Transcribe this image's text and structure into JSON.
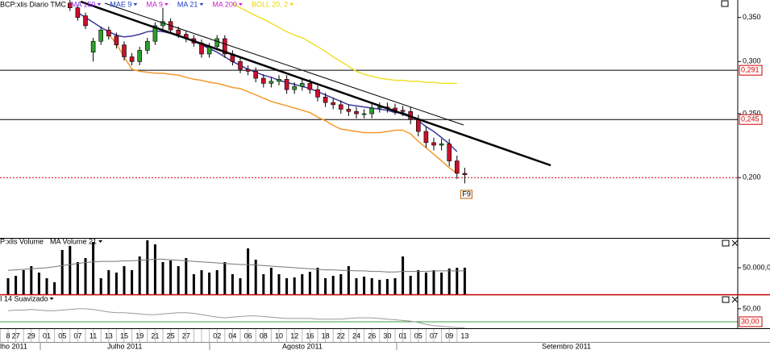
{
  "chart_data": [
    {
      "type": "candlestick",
      "title": "BCP:xlis Diario TMC",
      "legend": [
        {
          "name": "MA 150",
          "color": "#8a2be2"
        },
        {
          "name": "MAE 9",
          "color": "#2040c0"
        },
        {
          "name": "MA 9",
          "color": "#d020d0"
        },
        {
          "name": "MA 21",
          "color": "#2040c0"
        },
        {
          "name": "MA 200",
          "color": "#d020d0"
        },
        {
          "name": "BOLL 20, 2",
          "color": "#e8d800"
        }
      ],
      "open": [
        null,
        null,
        null,
        null,
        null,
        null,
        null,
        null,
        0.368,
        0.362,
        0.352,
        0.31,
        0.322,
        0.335,
        0.328,
        0.318,
        0.305,
        0.3,
        0.312,
        0.322,
        0.34,
        0.345,
        0.335,
        0.33,
        0.325,
        0.32,
        0.308,
        0.316,
        0.325,
        0.308,
        0.3,
        0.292,
        0.29,
        0.283,
        0.278,
        0.28,
        0.282,
        0.272,
        0.275,
        0.278,
        0.272,
        0.265,
        0.26,
        0.258,
        0.254,
        0.252,
        0.25,
        0.25,
        0.255,
        0.256,
        0.255,
        0.253,
        0.252,
        0.245,
        0.235,
        0.226,
        0.224,
        0.225,
        0.212,
        0.203
      ],
      "high": [
        null,
        null,
        null,
        null,
        null,
        null,
        null,
        null,
        0.372,
        0.366,
        0.356,
        0.326,
        0.339,
        0.339,
        0.332,
        0.322,
        0.309,
        0.316,
        0.326,
        0.344,
        0.362,
        0.349,
        0.339,
        0.334,
        0.329,
        0.324,
        0.32,
        0.329,
        0.329,
        0.312,
        0.304,
        0.296,
        0.294,
        0.287,
        0.284,
        0.286,
        0.286,
        0.279,
        0.282,
        0.282,
        0.276,
        0.269,
        0.264,
        0.262,
        0.258,
        0.256,
        0.254,
        0.259,
        0.26,
        0.26,
        0.259,
        0.257,
        0.256,
        0.249,
        0.239,
        0.23,
        0.229,
        0.229,
        0.216,
        0.207
      ],
      "low": [
        null,
        null,
        null,
        null,
        null,
        null,
        null,
        null,
        0.358,
        0.346,
        0.336,
        0.3,
        0.318,
        0.324,
        0.314,
        0.301,
        0.296,
        0.296,
        0.308,
        0.318,
        0.336,
        0.331,
        0.326,
        0.321,
        0.316,
        0.304,
        0.304,
        0.312,
        0.304,
        0.296,
        0.288,
        0.286,
        0.279,
        0.274,
        0.274,
        0.276,
        0.268,
        0.268,
        0.271,
        0.268,
        0.261,
        0.256,
        0.254,
        0.25,
        0.248,
        0.246,
        0.246,
        0.246,
        0.251,
        0.251,
        0.249,
        0.248,
        0.241,
        0.231,
        0.222,
        0.22,
        0.22,
        0.208,
        0.199,
        0.196
      ],
      "close": [
        null,
        null,
        null,
        null,
        null,
        null,
        null,
        null,
        0.362,
        0.35,
        0.34,
        0.322,
        0.335,
        0.328,
        0.318,
        0.305,
        0.3,
        0.312,
        0.322,
        0.34,
        0.345,
        0.335,
        0.33,
        0.325,
        0.32,
        0.308,
        0.316,
        0.325,
        0.308,
        0.3,
        0.292,
        0.29,
        0.283,
        0.278,
        0.28,
        0.282,
        0.272,
        0.275,
        0.278,
        0.272,
        0.265,
        0.26,
        0.258,
        0.254,
        0.252,
        0.25,
        0.25,
        0.255,
        0.256,
        0.255,
        0.253,
        0.252,
        0.245,
        0.235,
        0.226,
        0.224,
        0.225,
        0.212,
        0.203,
        0.202
      ],
      "up_color": "#2e9e2e",
      "down_color": "#c8102e",
      "overlays": [
        {
          "color": "#f0e030",
          "values": [
            null,
            null,
            null,
            null,
            null,
            null,
            null,
            null,
            null,
            null,
            null,
            null,
            null,
            null,
            null,
            null,
            null,
            null,
            null,
            null,
            null,
            null,
            null,
            null,
            null,
            null,
            null,
            null,
            null,
            0.368,
            0.362,
            0.357,
            0.352,
            0.348,
            0.343,
            0.338,
            0.333,
            0.329,
            0.326,
            0.321,
            0.316,
            0.311,
            0.305,
            0.3,
            0.295,
            0.29,
            0.287,
            0.285,
            0.283,
            0.282,
            0.281,
            0.281,
            0.28,
            0.28,
            0.279,
            0.279,
            0.278,
            0.278,
            0.278,
            null
          ]
        },
        {
          "color": "#f39a2c",
          "values": [
            null,
            null,
            null,
            null,
            null,
            null,
            null,
            null,
            null,
            null,
            null,
            null,
            null,
            0.33,
            0.319,
            0.305,
            0.292,
            0.29,
            0.289,
            0.288,
            0.288,
            0.287,
            0.286,
            0.284,
            0.282,
            0.281,
            0.279,
            0.278,
            0.276,
            0.274,
            0.273,
            0.27,
            0.267,
            0.264,
            0.261,
            0.259,
            0.257,
            0.255,
            0.253,
            0.251,
            0.247,
            0.244,
            0.24,
            0.237,
            0.236,
            0.235,
            0.234,
            0.234,
            0.234,
            0.235,
            0.236,
            0.236,
            0.233,
            0.227,
            0.222,
            0.217,
            0.212,
            0.207,
            0.203,
            null
          ]
        },
        {
          "color": "#3a3a9a",
          "values": [
            null,
            null,
            null,
            null,
            null,
            null,
            null,
            null,
            null,
            0.356,
            0.35,
            0.344,
            0.338,
            0.333,
            0.329,
            0.327,
            0.328,
            0.33,
            0.333,
            0.334,
            0.333,
            0.331,
            0.328,
            0.325,
            0.322,
            0.318,
            0.314,
            0.31,
            0.305,
            0.3,
            0.296,
            0.292,
            0.289,
            0.286,
            0.284,
            0.281,
            0.279,
            0.277,
            0.275,
            0.273,
            0.27,
            0.267,
            0.264,
            0.261,
            0.258,
            0.257,
            0.256,
            0.255,
            0.254,
            0.253,
            0.251,
            0.251,
            0.248,
            0.244,
            0.239,
            0.235,
            0.23,
            0.225,
            0.219,
            null
          ]
        }
      ],
      "ylim": [
        0.162,
        0.372
      ],
      "log_scale": true,
      "yticks": [
        {
          "value": 0.2,
          "label": "0,200"
        },
        {
          "value": 0.25,
          "label": "0,250"
        },
        {
          "value": 0.3,
          "label": "0,300"
        },
        {
          "value": 0.35,
          "label": "0,350"
        }
      ],
      "levels": [
        {
          "value": 0.291,
          "label": "0,291"
        },
        {
          "value": 0.245,
          "label": "0,245"
        }
      ],
      "last_price": 0.2,
      "annotation": "F9"
    },
    {
      "type": "bar",
      "title": "P:xlis Volume",
      "color": "#000000",
      "values": [
        30300,
        34800,
        45500,
        53000,
        40900,
        30300,
        22700,
        83300,
        90900,
        60600,
        68200,
        98500,
        30300,
        45500,
        40900,
        53000,
        45500,
        71200,
        101500,
        93900,
        60600,
        63600,
        53000,
        68200,
        37900,
        45500,
        40900,
        45500,
        60600,
        37900,
        30300,
        86400,
        65100,
        37900,
        50000,
        37900,
        30300,
        31800,
        37900,
        42400,
        50000,
        30300,
        34800,
        37900,
        53000,
        30300,
        33300,
        30300,
        27300,
        28800,
        30300,
        71200,
        34800,
        45500,
        40900,
        45500,
        40900,
        48500,
        50000,
        50000
      ],
      "average": {
        "name": "MA Volume 21",
        "color": "#777777",
        "values": [
          45000,
          46000,
          47000,
          48000,
          49000,
          50000,
          52000,
          54000,
          56000,
          58000,
          60000,
          61000,
          62000,
          62000,
          62000,
          63000,
          63000,
          64000,
          65000,
          66000,
          66000,
          65000,
          64000,
          63000,
          62000,
          61000,
          60000,
          59000,
          58000,
          57000,
          56000,
          56000,
          55000,
          54000,
          53000,
          52000,
          51000,
          50000,
          49000,
          48000,
          47000,
          46000,
          46000,
          45000,
          45000,
          44000,
          44000,
          43000,
          43000,
          42000,
          42000,
          43000,
          43000,
          43000,
          43000,
          44000,
          44000,
          44000,
          44000,
          44000
        ]
      },
      "ylim": [
        0,
        104500
      ],
      "yticks": [
        {
          "value": 50000,
          "label": "50.000,0"
        }
      ]
    },
    {
      "type": "line",
      "title": "I 14 Suavizado",
      "color": "#9a9a9a",
      "values": [
        47,
        48,
        48,
        49,
        48,
        47,
        47,
        48,
        49,
        50,
        50,
        49,
        47,
        45,
        44,
        44,
        43,
        42,
        41,
        41,
        42,
        43,
        44,
        44,
        43,
        41,
        39,
        37,
        36,
        37,
        38,
        39,
        39,
        38,
        37,
        36,
        35,
        35,
        35,
        35,
        34,
        34,
        34,
        34,
        35,
        36,
        36,
        36,
        35,
        34,
        33,
        32,
        31,
        29,
        26,
        24,
        23,
        22,
        21,
        21
      ],
      "ylim": [
        20,
        71
      ],
      "yticks": [
        {
          "value": 50,
          "label": "50,00"
        }
      ],
      "levels": [
        {
          "value": 30,
          "label": "30,00",
          "color": "#3aa03a"
        }
      ]
    }
  ],
  "x_axis": {
    "categories": [
      "8",
      "27",
      null,
      "29",
      null,
      "01",
      null,
      "05",
      null,
      "07",
      null,
      "11",
      null,
      "13",
      null,
      "15",
      null,
      "19",
      null,
      "21",
      null,
      "25",
      null,
      "27",
      null,
      null,
      null,
      "02",
      null,
      "04",
      null,
      "06",
      null,
      "08",
      null,
      "10",
      null,
      "12",
      null,
      "16",
      null,
      "18",
      null,
      "22",
      null,
      "24",
      null,
      "26",
      null,
      "30",
      null,
      "01",
      null,
      "05",
      null,
      "07",
      null,
      "09",
      null,
      "13"
    ],
    "months": [
      "lho 2011",
      "Julho 2011",
      "Agosto 2011",
      "Setembro 2011"
    ]
  }
}
